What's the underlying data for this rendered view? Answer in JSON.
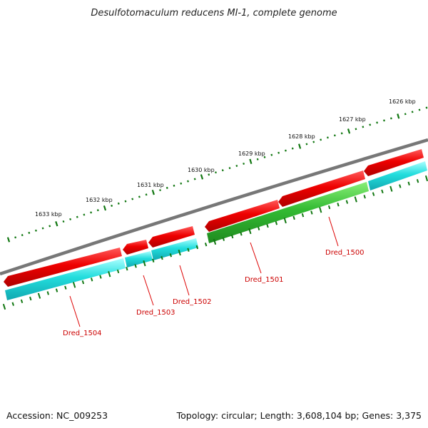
{
  "title": "Desulfotomaculum reducens MI-1, complete genome",
  "footer": {
    "accession": "Accession: NC_009253",
    "topology": "Topology: circular; Length: 3,608,104 bp; Genes: 3,375"
  },
  "colors": {
    "backbone": "#777777",
    "forward_cds": "#ee0000",
    "reverse_cds": "#22cccc",
    "highlight_gene": "#33bb33",
    "ticks": "#117711",
    "labels": "#cc0000"
  },
  "scale_labels": [
    "1626 kbp",
    "1627 kbp",
    "1628 kbp",
    "1629 kbp",
    "1630 kbp",
    "1631 kbp",
    "1632 kbp",
    "1633 kbp"
  ],
  "gene_labels": [
    "Dred_1500",
    "Dred_1501",
    "Dred_1502",
    "Dred_1503",
    "Dred_1504"
  ]
}
